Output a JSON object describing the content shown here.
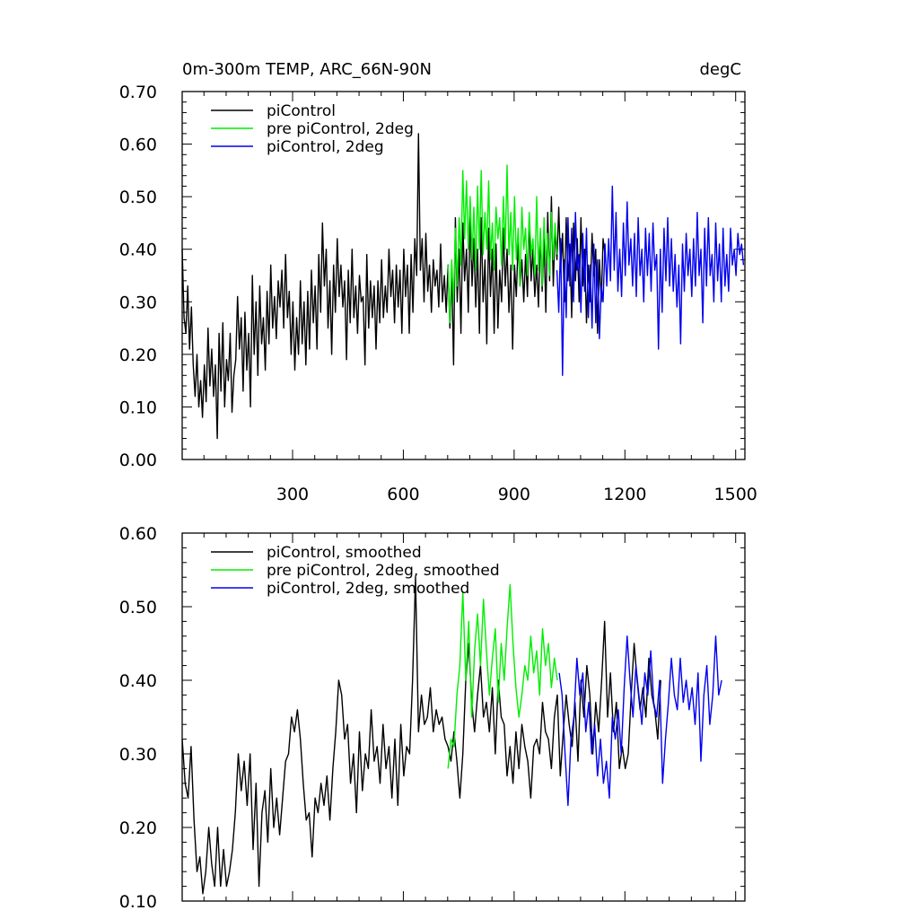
{
  "chart_data": [
    {
      "type": "line",
      "title": "0m-300m TEMP, ARC_66N-90N",
      "units": "degC",
      "xlim": [
        1,
        1525
      ],
      "ylim": [
        0.0,
        0.7
      ],
      "xticks": [
        300,
        600,
        900,
        1200,
        1500
      ],
      "xtick_labels": [
        "300",
        "600",
        "900",
        "1200",
        "1500"
      ],
      "yticks": [
        0.0,
        0.1,
        0.2,
        0.3,
        0.4,
        0.5,
        0.6,
        0.7
      ],
      "ytick_labels": [
        "0.00",
        "0.10",
        "0.20",
        "0.30",
        "0.40",
        "0.50",
        "0.60",
        "0.70"
      ],
      "legend": "top-left",
      "series": [
        {
          "name": "piControl",
          "color": "#000000",
          "x_start": 1,
          "x_step": 5,
          "values": [
            0.4,
            0.27,
            0.24,
            0.33,
            0.21,
            0.29,
            0.18,
            0.12,
            0.2,
            0.1,
            0.15,
            0.08,
            0.18,
            0.11,
            0.25,
            0.14,
            0.21,
            0.12,
            0.18,
            0.04,
            0.24,
            0.13,
            0.26,
            0.1,
            0.19,
            0.15,
            0.24,
            0.09,
            0.16,
            0.19,
            0.31,
            0.21,
            0.27,
            0.13,
            0.28,
            0.17,
            0.24,
            0.1,
            0.35,
            0.2,
            0.3,
            0.16,
            0.33,
            0.22,
            0.27,
            0.17,
            0.32,
            0.22,
            0.37,
            0.25,
            0.31,
            0.23,
            0.34,
            0.29,
            0.36,
            0.25,
            0.39,
            0.27,
            0.32,
            0.2,
            0.3,
            0.17,
            0.27,
            0.2,
            0.34,
            0.22,
            0.3,
            0.18,
            0.32,
            0.21,
            0.36,
            0.26,
            0.33,
            0.21,
            0.39,
            0.28,
            0.45,
            0.33,
            0.4,
            0.25,
            0.34,
            0.2,
            0.37,
            0.28,
            0.42,
            0.31,
            0.37,
            0.29,
            0.34,
            0.19,
            0.36,
            0.26,
            0.4,
            0.27,
            0.33,
            0.24,
            0.35,
            0.3,
            0.31,
            0.18,
            0.39,
            0.25,
            0.34,
            0.27,
            0.33,
            0.21,
            0.34,
            0.26,
            0.38,
            0.27,
            0.33,
            0.28,
            0.4,
            0.31,
            0.36,
            0.26,
            0.37,
            0.29,
            0.36,
            0.24,
            0.4,
            0.31,
            0.37,
            0.24,
            0.39,
            0.28,
            0.42,
            0.35,
            0.62,
            0.36,
            0.42,
            0.3,
            0.43,
            0.32,
            0.37,
            0.28,
            0.38,
            0.33,
            0.36,
            0.29,
            0.41,
            0.3,
            0.35,
            0.28,
            0.37,
            0.25,
            0.36,
            0.18,
            0.46,
            0.3,
            0.4,
            0.24,
            0.45,
            0.34,
            0.4,
            0.28,
            0.47,
            0.33,
            0.42,
            0.29,
            0.4,
            0.24,
            0.46,
            0.3,
            0.38,
            0.22,
            0.44,
            0.31,
            0.4,
            0.24,
            0.41,
            0.25,
            0.36,
            0.3,
            0.44,
            0.33,
            0.4,
            0.28,
            0.37,
            0.21,
            0.37,
            0.31,
            0.42,
            0.33,
            0.38,
            0.3,
            0.39,
            0.31,
            0.46,
            0.34,
            0.4,
            0.31,
            0.37,
            0.29,
            0.43,
            0.32,
            0.42,
            0.28,
            0.47,
            0.34,
            0.5,
            0.33,
            0.44,
            0.38,
            0.48,
            0.36,
            0.43,
            0.3,
            0.46,
            0.34,
            0.41,
            0.27,
            0.45,
            0.34,
            0.42,
            0.3,
            0.46,
            0.33,
            0.4,
            0.26,
            0.37,
            0.3,
            0.43,
            0.35,
            0.4,
            0.24,
            0.38,
            0.3,
            0.42,
            0.39
          ]
        },
        {
          "name": "pre piControl, 2deg",
          "color": "#00ee00",
          "x_start": 721,
          "x_step": 5,
          "values": [
            0.37,
            0.26,
            0.38,
            0.3,
            0.44,
            0.33,
            0.46,
            0.37,
            0.55,
            0.42,
            0.53,
            0.4,
            0.5,
            0.38,
            0.48,
            0.36,
            0.52,
            0.4,
            0.55,
            0.39,
            0.47,
            0.4,
            0.53,
            0.38,
            0.45,
            0.36,
            0.48,
            0.42,
            0.46,
            0.37,
            0.5,
            0.4,
            0.56,
            0.39,
            0.47,
            0.36,
            0.5,
            0.38,
            0.44,
            0.33,
            0.48,
            0.4,
            0.44,
            0.35,
            0.47,
            0.39,
            0.42,
            0.35,
            0.5,
            0.36,
            0.44,
            0.33,
            0.46,
            0.37,
            0.43,
            0.35,
            0.47,
            0.38,
            0.45,
            0.39
          ]
        },
        {
          "name": "piControl, 2deg",
          "color": "#0000ee",
          "x_start": 1016,
          "x_step": 5,
          "values": [
            0.36,
            0.28,
            0.42,
            0.16,
            0.38,
            0.27,
            0.46,
            0.33,
            0.44,
            0.3,
            0.47,
            0.36,
            0.39,
            0.28,
            0.43,
            0.32,
            0.44,
            0.27,
            0.37,
            0.25,
            0.41,
            0.26,
            0.38,
            0.23,
            0.33,
            0.3,
            0.41,
            0.33,
            0.42,
            0.34,
            0.52,
            0.36,
            0.47,
            0.32,
            0.4,
            0.31,
            0.45,
            0.35,
            0.49,
            0.37,
            0.42,
            0.33,
            0.43,
            0.31,
            0.46,
            0.35,
            0.4,
            0.3,
            0.44,
            0.35,
            0.43,
            0.32,
            0.45,
            0.36,
            0.39,
            0.21,
            0.4,
            0.28,
            0.44,
            0.34,
            0.46,
            0.33,
            0.42,
            0.32,
            0.39,
            0.29,
            0.37,
            0.22,
            0.41,
            0.32,
            0.43,
            0.35,
            0.4,
            0.31,
            0.42,
            0.33,
            0.47,
            0.35,
            0.4,
            0.26,
            0.44,
            0.33,
            0.46,
            0.35,
            0.39,
            0.3,
            0.45,
            0.34,
            0.41,
            0.3,
            0.44,
            0.33,
            0.39,
            0.32,
            0.44,
            0.37,
            0.4,
            0.35,
            0.43,
            0.39,
            0.41,
            0.37
          ]
        }
      ]
    },
    {
      "type": "line",
      "title": "",
      "xlim": [
        1,
        1525
      ],
      "ylim": [
        0.1,
        0.6
      ],
      "xticks": [
        300,
        600,
        900,
        1200,
        1500
      ],
      "yticks": [
        0.1,
        0.2,
        0.3,
        0.4,
        0.5,
        0.6
      ],
      "ytick_labels": [
        "0.10",
        "0.20",
        "0.30",
        "0.40",
        "0.50",
        "0.60"
      ],
      "legend": "top-left",
      "series": [
        {
          "name": "piControl, smoothed",
          "color": "#000000",
          "x_start": 1,
          "x_step": 8,
          "values": [
            0.32,
            0.26,
            0.24,
            0.31,
            0.21,
            0.14,
            0.16,
            0.11,
            0.14,
            0.2,
            0.15,
            0.12,
            0.2,
            0.12,
            0.17,
            0.12,
            0.14,
            0.17,
            0.22,
            0.3,
            0.25,
            0.29,
            0.23,
            0.3,
            0.17,
            0.26,
            0.12,
            0.22,
            0.25,
            0.18,
            0.28,
            0.2,
            0.24,
            0.19,
            0.24,
            0.29,
            0.3,
            0.35,
            0.33,
            0.36,
            0.32,
            0.26,
            0.21,
            0.22,
            0.16,
            0.24,
            0.22,
            0.26,
            0.23,
            0.27,
            0.21,
            0.28,
            0.33,
            0.4,
            0.38,
            0.32,
            0.34,
            0.26,
            0.3,
            0.22,
            0.33,
            0.25,
            0.3,
            0.28,
            0.36,
            0.29,
            0.31,
            0.26,
            0.34,
            0.28,
            0.31,
            0.24,
            0.32,
            0.23,
            0.34,
            0.27,
            0.31,
            0.3,
            0.4,
            0.54,
            0.33,
            0.38,
            0.34,
            0.35,
            0.39,
            0.33,
            0.36,
            0.34,
            0.35,
            0.32,
            0.31,
            0.29,
            0.33,
            0.29,
            0.24,
            0.3,
            0.4,
            0.45,
            0.37,
            0.33,
            0.38,
            0.42,
            0.35,
            0.37,
            0.33,
            0.39,
            0.3,
            0.4,
            0.35,
            0.34,
            0.27,
            0.31,
            0.26,
            0.33,
            0.28,
            0.34,
            0.31,
            0.29,
            0.24,
            0.31,
            0.32,
            0.3,
            0.37,
            0.33,
            0.32,
            0.28,
            0.35,
            0.38,
            0.27,
            0.33,
            0.38,
            0.34,
            0.31,
            0.37,
            0.29,
            0.4,
            0.35,
            0.42,
            0.38,
            0.3,
            0.37,
            0.33,
            0.4,
            0.48,
            0.35,
            0.41,
            0.33,
            0.37,
            0.28,
            0.31,
            0.28,
            0.3,
            0.38,
            0.45,
            0.4,
            0.36,
            0.39,
            0.35,
            0.43,
            0.38,
            0.36,
            0.32,
            0.4
          ]
        },
        {
          "name": "pre piControl, 2deg, smoothed",
          "color": "#00ee00",
          "x_start": 721,
          "x_step": 8,
          "values": [
            0.28,
            0.32,
            0.31,
            0.38,
            0.42,
            0.52,
            0.4,
            0.48,
            0.35,
            0.44,
            0.49,
            0.42,
            0.51,
            0.44,
            0.38,
            0.43,
            0.47,
            0.37,
            0.45,
            0.4,
            0.47,
            0.53,
            0.45,
            0.39,
            0.35,
            0.38,
            0.42,
            0.4,
            0.46,
            0.41,
            0.44,
            0.38,
            0.47,
            0.42,
            0.45,
            0.39,
            0.43,
            0.4
          ]
        },
        {
          "name": "piControl, 2deg, smoothed",
          "color": "#0000ee",
          "x_start": 1022,
          "x_step": 8,
          "values": [
            0.41,
            0.38,
            0.3,
            0.23,
            0.32,
            0.35,
            0.43,
            0.38,
            0.41,
            0.33,
            0.37,
            0.3,
            0.34,
            0.27,
            0.32,
            0.26,
            0.29,
            0.24,
            0.35,
            0.32,
            0.36,
            0.3,
            0.39,
            0.46,
            0.4,
            0.35,
            0.42,
            0.38,
            0.34,
            0.41,
            0.38,
            0.44,
            0.37,
            0.35,
            0.4,
            0.26,
            0.32,
            0.37,
            0.43,
            0.38,
            0.36,
            0.43,
            0.37,
            0.4,
            0.36,
            0.39,
            0.34,
            0.41,
            0.29,
            0.38,
            0.42,
            0.34,
            0.38,
            0.46,
            0.38,
            0.4
          ]
        }
      ]
    }
  ]
}
